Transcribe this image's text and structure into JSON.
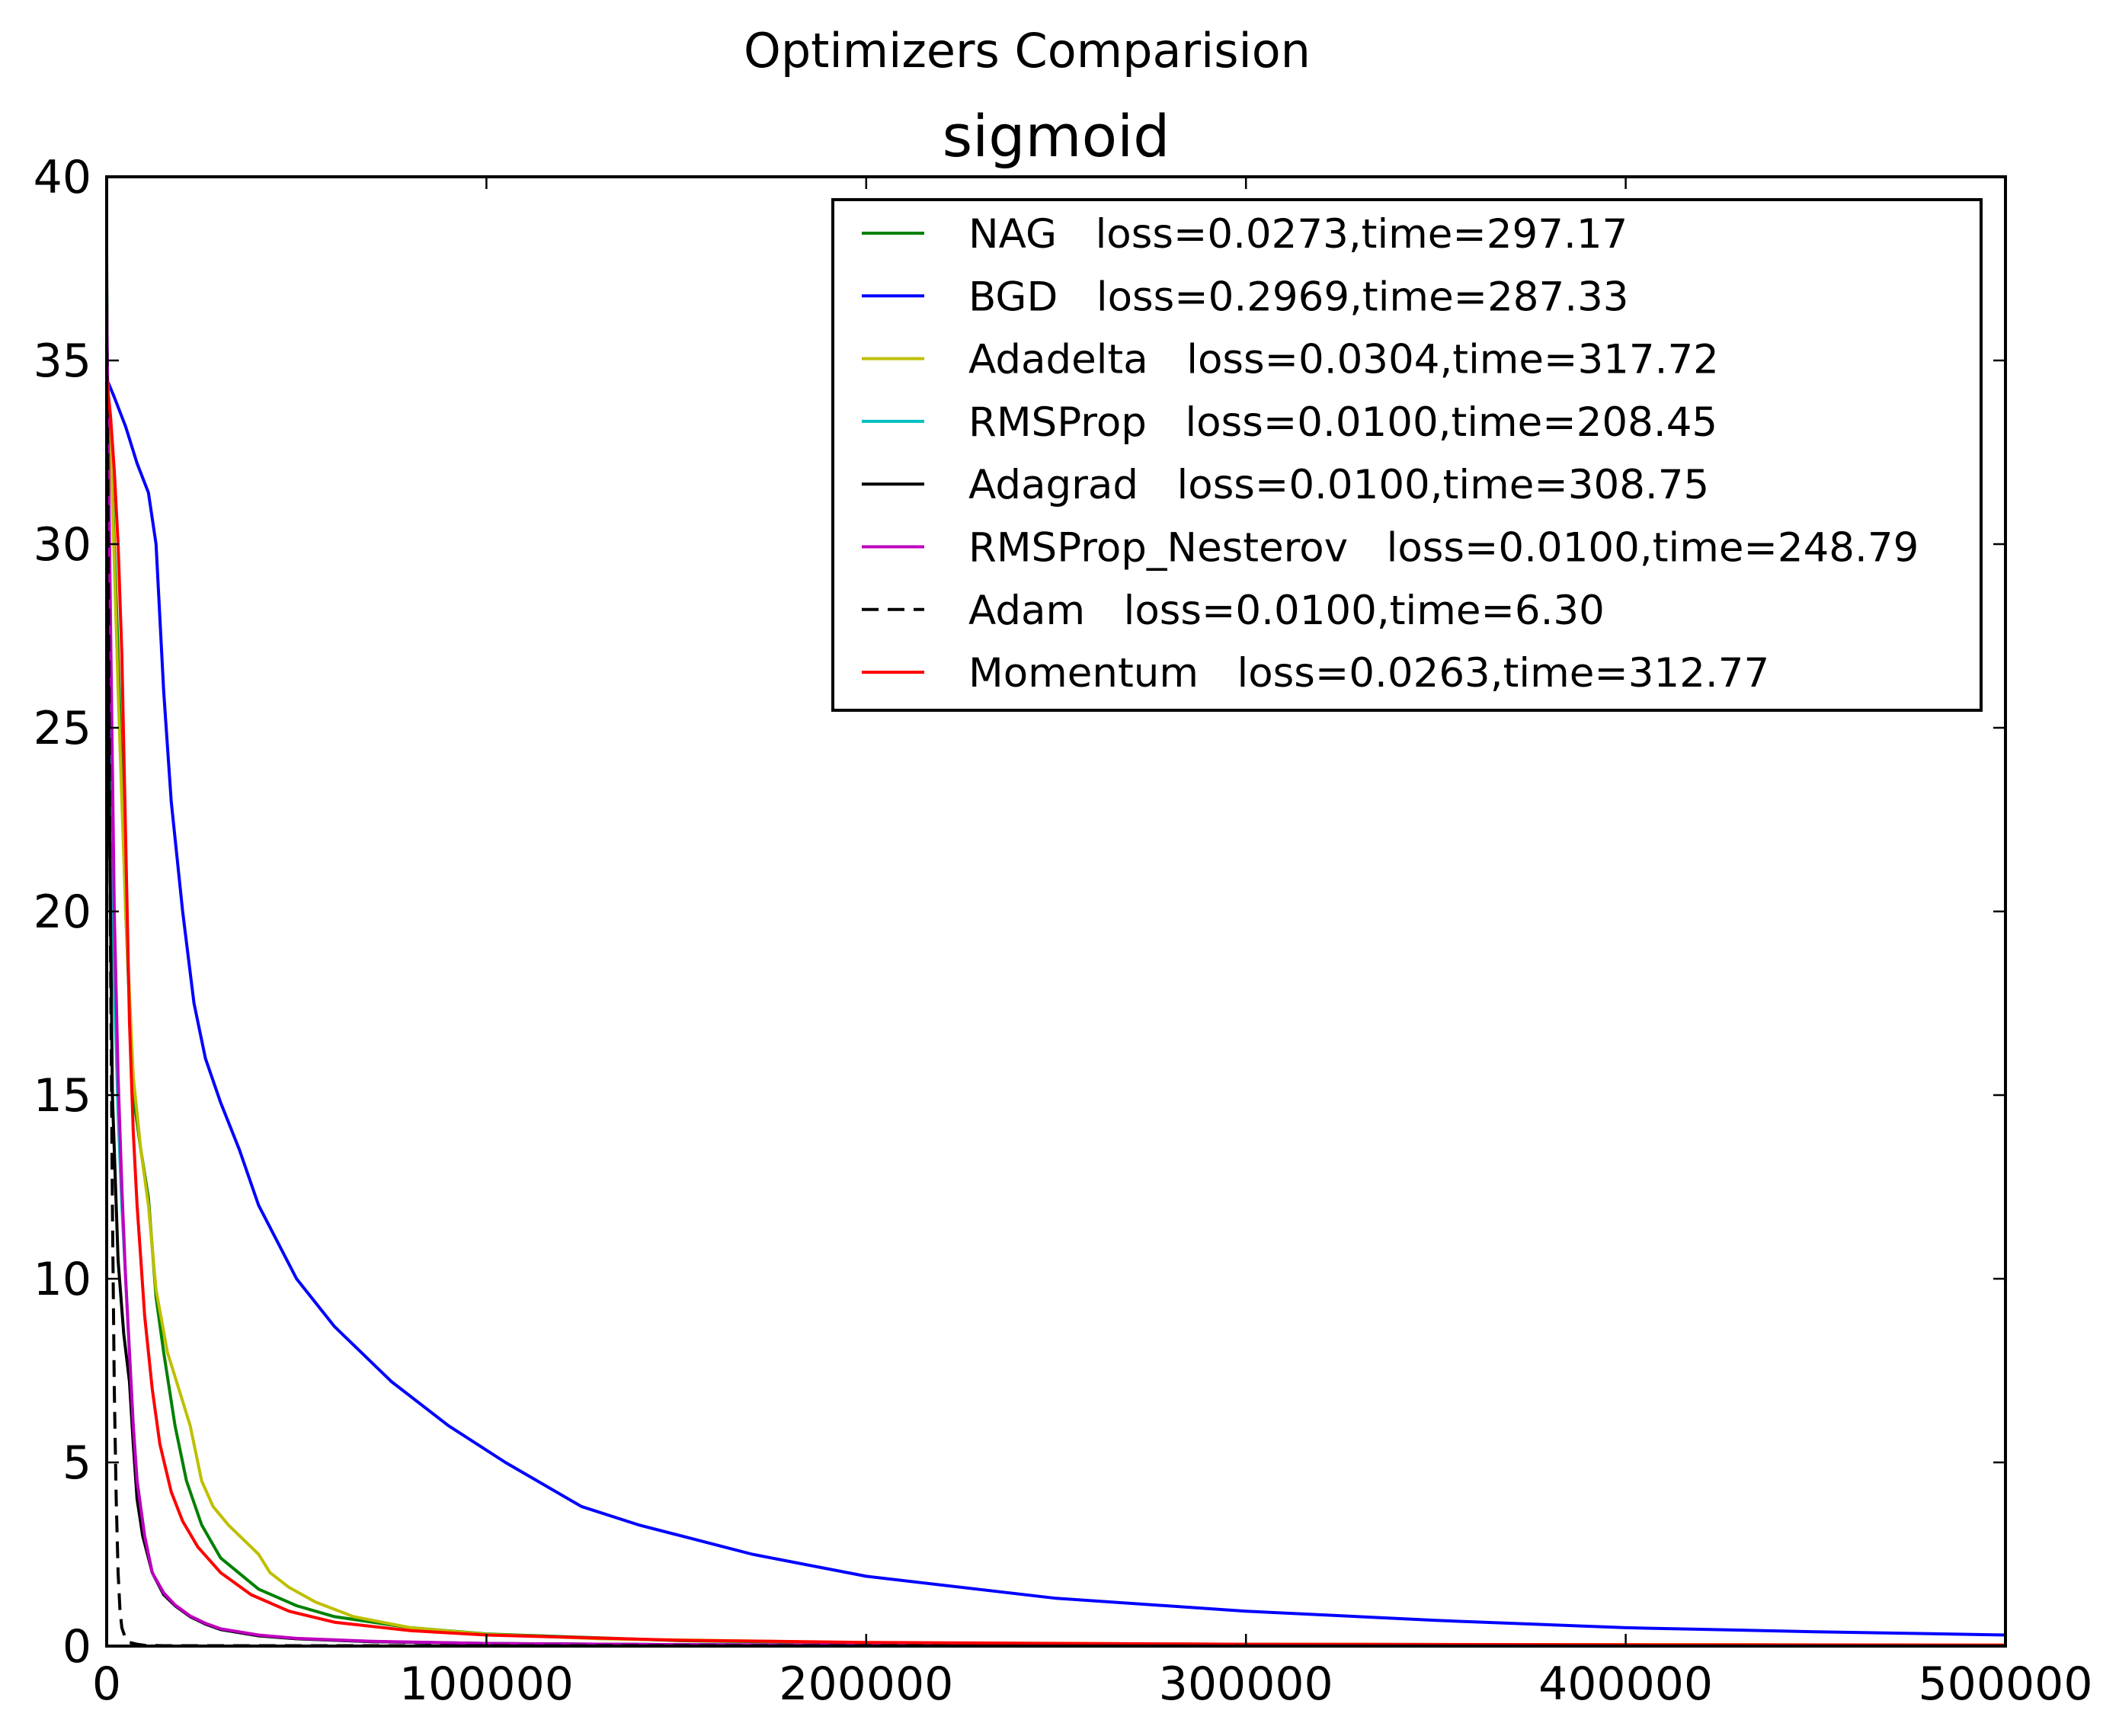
{
  "chart_data": {
    "type": "line",
    "suptitle": "Optimizers Comparision",
    "title": "sigmoid",
    "xlabel": "",
    "ylabel": "",
    "xlim": [
      0,
      500000
    ],
    "ylim": [
      0,
      40
    ],
    "xticks": [
      0,
      100000,
      200000,
      300000,
      400000,
      500000
    ],
    "yticks": [
      0,
      5,
      10,
      15,
      20,
      25,
      30,
      35,
      40
    ],
    "xtick_labels": [
      "0",
      "100000",
      "200000",
      "300000",
      "400000",
      "500000"
    ],
    "ytick_labels": [
      "0",
      "5",
      "10",
      "15",
      "20",
      "25",
      "30",
      "35",
      "40"
    ],
    "grid": false,
    "legend_position": "upper right",
    "series": [
      {
        "name": "NAG   loss=0.0273,time=297.17",
        "color": "#008000",
        "dash": "solid",
        "x": [
          0,
          1000,
          3000,
          5000,
          7000,
          9000,
          11000,
          13000,
          15000,
          18000,
          21000,
          25000,
          30000,
          40000,
          50000,
          60000,
          80000,
          100000,
          150000,
          200000,
          300000,
          400000,
          500000
        ],
        "y": [
          34.5,
          33.0,
          27.0,
          20.0,
          15.0,
          13.5,
          12.2,
          9.5,
          8.0,
          6.0,
          4.5,
          3.3,
          2.4,
          1.55,
          1.1,
          0.8,
          0.5,
          0.33,
          0.15,
          0.08,
          0.05,
          0.035,
          0.027
        ]
      },
      {
        "name": "BGD   loss=0.2969,time=287.33",
        "color": "#0000ff",
        "dash": "solid",
        "x": [
          0,
          2000,
          5000,
          8000,
          11000,
          13000,
          15000,
          17000,
          20000,
          23000,
          26000,
          30000,
          35000,
          40000,
          50000,
          60000,
          75000,
          90000,
          105000,
          125000,
          140000,
          170000,
          200000,
          250000,
          300000,
          350000,
          400000,
          450000,
          500000
        ],
        "y": [
          34.5,
          34.0,
          33.2,
          32.2,
          31.4,
          30.0,
          26.0,
          23.0,
          20.0,
          17.5,
          16.0,
          14.8,
          13.5,
          12.0,
          10.0,
          8.7,
          7.2,
          6.0,
          5.0,
          3.8,
          3.3,
          2.5,
          1.9,
          1.3,
          0.95,
          0.7,
          0.5,
          0.39,
          0.3
        ]
      },
      {
        "name": "Adadelta   loss=0.0304,time=317.72",
        "color": "#bfbf00",
        "dash": "solid",
        "x": [
          0,
          1000,
          3000,
          5000,
          7000,
          9000,
          11000,
          13000,
          16000,
          19000,
          22000,
          25000,
          28000,
          32000,
          36000,
          40000,
          43000,
          48000,
          55000,
          65000,
          80000,
          100000,
          130000,
          200000,
          300000,
          400000,
          500000
        ],
        "y": [
          35.0,
          33.0,
          26.0,
          20.0,
          15.5,
          13.5,
          12.0,
          9.7,
          8.0,
          7.0,
          6.0,
          4.5,
          3.8,
          3.3,
          2.9,
          2.5,
          2.0,
          1.6,
          1.2,
          0.8,
          0.5,
          0.32,
          0.2,
          0.09,
          0.05,
          0.04,
          0.03
        ]
      },
      {
        "name": "RMSProp   loss=0.0100,time=208.45",
        "color": "#00bfbf",
        "dash": "solid",
        "x": [
          0,
          1000,
          2000,
          3000,
          4000,
          5000,
          6000,
          7000,
          8000,
          10000,
          12000,
          15000,
          18000,
          22000,
          26000,
          30000,
          40000,
          50000,
          70000,
          100000,
          150000,
          200000,
          300000,
          400000,
          500000
        ],
        "y": [
          37.0,
          25.0,
          18.0,
          14.5,
          12.0,
          10.0,
          8.0,
          6.0,
          4.5,
          3.0,
          2.0,
          1.4,
          1.1,
          0.8,
          0.6,
          0.45,
          0.28,
          0.2,
          0.12,
          0.07,
          0.04,
          0.025,
          0.015,
          0.012,
          0.01
        ]
      },
      {
        "name": "Adagrad   loss=0.0100,time=308.75",
        "color": "#000000",
        "dash": "solid",
        "x": [
          0,
          500,
          1500,
          3000,
          4500,
          6000,
          7000,
          8000,
          9500,
          12000,
          15000,
          18000,
          22000,
          26000,
          30000,
          40000,
          50000,
          70000,
          100000,
          150000,
          200000,
          300000,
          400000,
          500000
        ],
        "y": [
          38.0,
          25.0,
          15.0,
          10.5,
          8.5,
          7.2,
          5.5,
          4.0,
          3.0,
          2.0,
          1.4,
          1.1,
          0.8,
          0.6,
          0.45,
          0.28,
          0.2,
          0.12,
          0.07,
          0.04,
          0.025,
          0.015,
          0.012,
          0.01
        ]
      },
      {
        "name": "RMSProp_Nesterov   loss=0.0100,time=248.79",
        "color": "#bf00bf",
        "dash": "solid",
        "x": [
          0,
          1000,
          2000,
          3000,
          4000,
          5000,
          6000,
          7000,
          8000,
          10000,
          12000,
          15000,
          18000,
          22000,
          26000,
          30000,
          40000,
          50000,
          70000,
          100000,
          150000,
          200000,
          300000,
          400000,
          500000
        ],
        "y": [
          36.5,
          28.0,
          20.0,
          15.5,
          12.5,
          10.0,
          8.0,
          6.0,
          4.5,
          3.0,
          2.0,
          1.45,
          1.12,
          0.82,
          0.62,
          0.47,
          0.3,
          0.21,
          0.13,
          0.07,
          0.04,
          0.025,
          0.015,
          0.012,
          0.01
        ]
      },
      {
        "name": "Adam   loss=0.0100,time=6.30",
        "color": "#000000",
        "dash": "dashed",
        "x": [
          0,
          500,
          1000,
          1500,
          2000,
          2500,
          3000,
          3500,
          4000,
          5000,
          6000,
          8000,
          10000,
          15000,
          20000,
          30000,
          50000,
          100000,
          200000,
          300000,
          400000,
          500000
        ],
        "y": [
          36.0,
          28.0,
          19.0,
          12.0,
          7.0,
          4.0,
          2.0,
          1.0,
          0.5,
          0.2,
          0.1,
          0.05,
          0.02,
          0.01,
          0.01,
          0.01,
          0.01,
          0.01,
          0.01,
          0.01,
          0.01,
          0.01
        ]
      },
      {
        "name": "Momentum   loss=0.0263,time=312.77",
        "color": "#ff0000",
        "dash": "solid",
        "x": [
          0,
          1000,
          2000,
          3000,
          4000,
          5000,
          6000,
          7000,
          8000,
          9000,
          10000,
          12000,
          14000,
          17000,
          20000,
          24000,
          30000,
          38000,
          48000,
          60000,
          80000,
          100000,
          150000,
          200000,
          300000,
          400000,
          500000
        ],
        "y": [
          34.5,
          33.5,
          32.0,
          30.0,
          27.0,
          22.0,
          17.0,
          14.0,
          12.0,
          10.5,
          9.0,
          7.0,
          5.5,
          4.2,
          3.4,
          2.7,
          2.0,
          1.4,
          0.95,
          0.65,
          0.42,
          0.3,
          0.16,
          0.1,
          0.05,
          0.035,
          0.026
        ]
      }
    ]
  }
}
